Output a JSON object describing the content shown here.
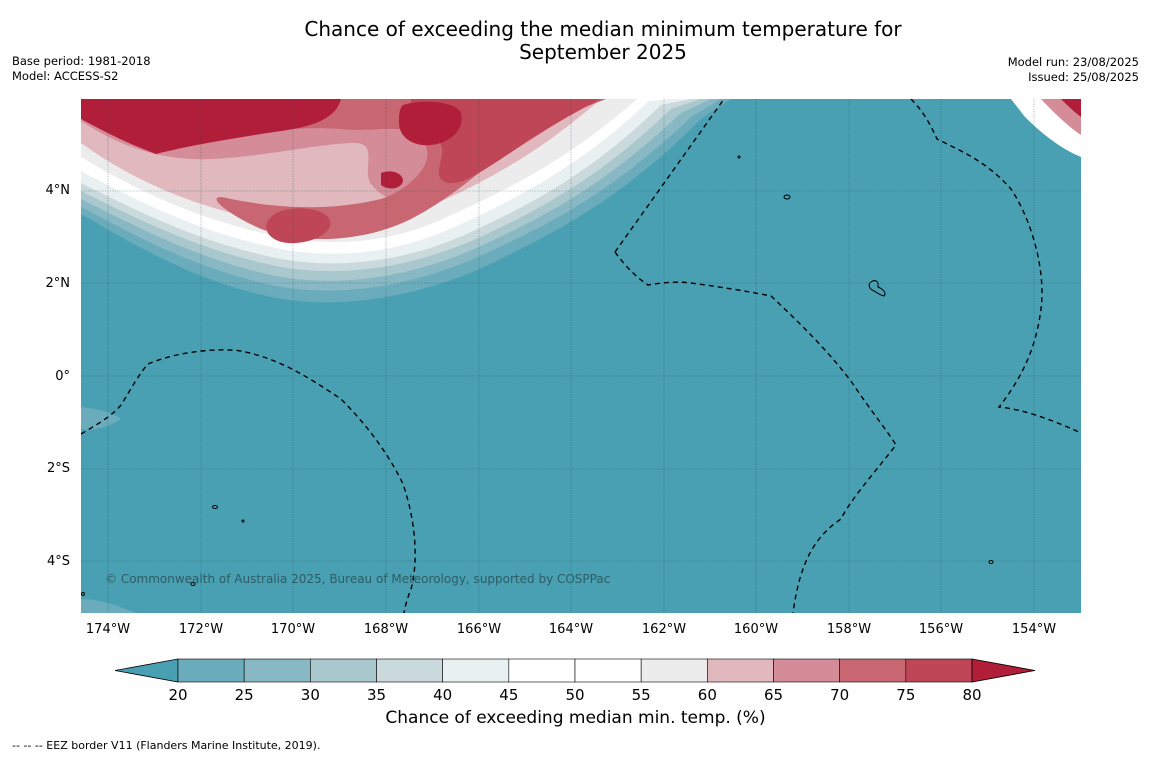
{
  "title": {
    "line1": "Chance of exceeding the median minimum temperature for",
    "line2": "September 2025"
  },
  "meta": {
    "base_period": "Base period: 1981-2018",
    "model": "Model: ACCESS-S2",
    "model_run": "Model run: 23/08/2025",
    "issued": "Issued: 25/08/2025"
  },
  "map": {
    "copyright": "© Commonwealth of Australia 2025, Bureau of Meteorology, supported by COSPPac",
    "lat_labels": [
      "4°N",
      "2°N",
      "0°",
      "2°S",
      "4°S"
    ],
    "lon_labels": [
      "174°W",
      "172°W",
      "170°W",
      "168°W",
      "166°W",
      "164°W",
      "162°W",
      "160°W",
      "158°W",
      "156°W",
      "154°W"
    ],
    "background_color": "#48a0b2"
  },
  "legend": {
    "title": "Chance of exceeding median min. temp. (%)",
    "ticks": [
      "20",
      "25",
      "30",
      "35",
      "40",
      "45",
      "50",
      "55",
      "60",
      "65",
      "70",
      "75",
      "80"
    ],
    "colors": [
      "#48a0b2",
      "#6aacbb",
      "#88b8c4",
      "#a8c8ce",
      "#c9d9dc",
      "#e9f0f2",
      "#ffffff",
      "#ffffff",
      "#ececec",
      "#e0b8be",
      "#d48c98",
      "#c86672",
      "#be4656",
      "#b01e3a"
    ]
  },
  "footnote": "--  --  -- EEZ border V11 (Flanders Marine Institute, 2019)."
}
